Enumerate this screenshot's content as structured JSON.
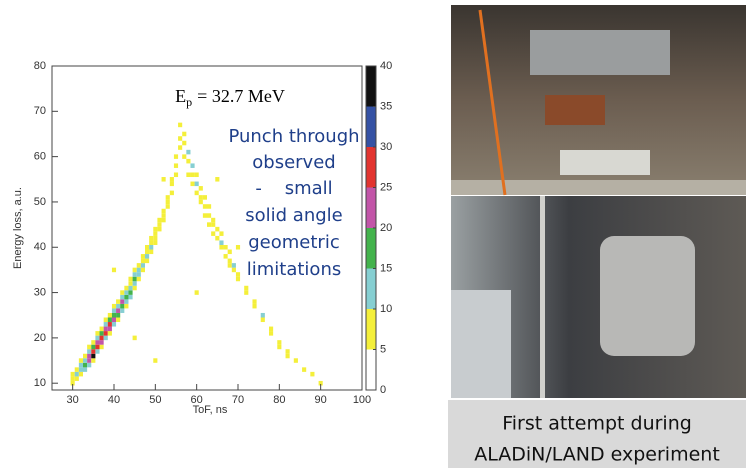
{
  "chart_data": {
    "type": "heatmap",
    "title_parts": {
      "main": "E",
      "sub": "p",
      "rest": "= 32.7 MeV"
    },
    "annotation_lines": [
      "Punch through",
      "observed",
      "-    small",
      "solid angle",
      "geometric",
      "limitations"
    ],
    "annotation_color": "#1f3f8a",
    "xlabel": "ToF, ns",
    "ylabel": "Energy loss, a.u.",
    "xlim": [
      25,
      100
    ],
    "xticks": [
      30,
      40,
      50,
      60,
      70,
      80,
      90,
      100
    ],
    "ylim": [
      8.5,
      80
    ],
    "yticks": [
      10,
      20,
      30,
      40,
      50,
      60,
      70,
      80
    ],
    "colorbar": {
      "lim": [
        0,
        40
      ],
      "ticks": [
        0,
        5,
        10,
        15,
        20,
        25,
        30,
        35,
        40
      ],
      "colors": [
        "#ffffff",
        "#f4ef3a",
        "#86cfd2",
        "#43b34c",
        "#c255a8",
        "#e2342f",
        "#3552a4",
        "#111111"
      ]
    },
    "columns": [
      {
        "x": 30,
        "y": [
          10,
          11,
          12
        ],
        "values": [
          6,
          8,
          5
        ]
      },
      {
        "x": 31,
        "y": [
          11,
          12,
          13
        ],
        "values": [
          9,
          12,
          7
        ]
      },
      {
        "x": 32,
        "y": [
          12,
          13,
          14,
          15
        ],
        "values": [
          8,
          14,
          10,
          6
        ]
      },
      {
        "x": 33,
        "y": [
          13,
          14,
          15,
          16
        ],
        "values": [
          12,
          18,
          14,
          7
        ]
      },
      {
        "x": 34,
        "y": [
          14,
          15,
          16,
          17,
          18
        ],
        "values": [
          10,
          22,
          24,
          12,
          6
        ]
      },
      {
        "x": 35,
        "y": [
          15,
          16,
          17,
          18,
          19
        ],
        "values": [
          8,
          36,
          26,
          16,
          7
        ]
      },
      {
        "x": 36,
        "y": [
          17,
          18,
          19,
          20,
          21
        ],
        "values": [
          14,
          28,
          22,
          12,
          6
        ]
      },
      {
        "x": 37,
        "y": [
          18,
          19,
          20,
          21,
          22
        ],
        "values": [
          9,
          24,
          27,
          18,
          8
        ]
      },
      {
        "x": 38,
        "y": [
          20,
          21,
          22,
          23,
          24
        ],
        "values": [
          12,
          26,
          22,
          14,
          6
        ]
      },
      {
        "x": 39,
        "y": [
          21,
          22,
          23,
          24,
          25
        ],
        "values": [
          8,
          20,
          28,
          17,
          9
        ]
      },
      {
        "x": 40,
        "y": [
          23,
          24,
          25,
          26,
          27,
          35
        ],
        "values": [
          12,
          22,
          18,
          13,
          6,
          6
        ]
      },
      {
        "x": 41,
        "y": [
          24,
          25,
          26,
          27,
          28
        ],
        "values": [
          7,
          16,
          24,
          14,
          8
        ]
      },
      {
        "x": 42,
        "y": [
          26,
          27,
          28,
          29,
          30
        ],
        "values": [
          12,
          18,
          21,
          11,
          6
        ]
      },
      {
        "x": 43,
        "y": [
          27,
          28,
          29,
          30,
          31
        ],
        "values": [
          8,
          14,
          17,
          12,
          7
        ]
      },
      {
        "x": 44,
        "y": [
          29,
          30,
          31,
          32,
          33
        ],
        "values": [
          11,
          16,
          13,
          8,
          6
        ]
      },
      {
        "x": 45,
        "y": [
          20,
          31,
          32,
          33,
          34,
          35
        ],
        "values": [
          6,
          9,
          12,
          17,
          11,
          6
        ]
      },
      {
        "x": 46,
        "y": [
          33,
          34,
          35,
          36
        ],
        "values": [
          8,
          13,
          11,
          7
        ]
      },
      {
        "x": 47,
        "y": [
          35,
          36,
          37,
          38
        ],
        "values": [
          7,
          12,
          9,
          6
        ]
      },
      {
        "x": 48,
        "y": [
          37,
          38,
          39,
          40
        ],
        "values": [
          8,
          11,
          8,
          6
        ]
      },
      {
        "x": 49,
        "y": [
          39,
          40,
          41,
          42
        ],
        "values": [
          7,
          12,
          7,
          6
        ]
      },
      {
        "x": 50,
        "y": [
          15,
          41,
          42,
          43,
          44
        ],
        "values": [
          6,
          6,
          9,
          7,
          6
        ]
      },
      {
        "x": 51,
        "y": [
          44,
          45,
          46
        ],
        "values": [
          6,
          8,
          6
        ]
      },
      {
        "x": 52,
        "y": [
          46,
          47,
          48,
          55
        ],
        "values": [
          7,
          6,
          8,
          6
        ]
      },
      {
        "x": 53,
        "y": [
          49,
          50,
          51
        ],
        "values": [
          6,
          7,
          6
        ]
      },
      {
        "x": 54,
        "y": [
          52,
          54,
          55
        ],
        "values": [
          6,
          7,
          6
        ]
      },
      {
        "x": 55,
        "y": [
          56,
          58,
          60
        ],
        "values": [
          7,
          6,
          6
        ]
      },
      {
        "x": 56,
        "y": [
          62,
          64,
          67
        ],
        "values": [
          7,
          6,
          6
        ]
      },
      {
        "x": 57,
        "y": [
          60,
          63,
          65
        ],
        "values": [
          6,
          8,
          6
        ]
      },
      {
        "x": 58,
        "y": [
          56,
          59,
          61
        ],
        "values": [
          6,
          7,
          12
        ]
      },
      {
        "x": 59,
        "y": [
          54,
          56,
          58
        ],
        "values": [
          6,
          8,
          11
        ]
      },
      {
        "x": 60,
        "y": [
          30,
          52,
          54,
          56
        ],
        "values": [
          6,
          6,
          10,
          7
        ]
      },
      {
        "x": 61,
        "y": [
          50,
          51,
          53
        ],
        "values": [
          6,
          8,
          6
        ]
      },
      {
        "x": 62,
        "y": [
          47,
          49,
          51
        ],
        "values": [
          6,
          9,
          7
        ]
      },
      {
        "x": 63,
        "y": [
          45,
          47,
          49
        ],
        "values": [
          6,
          8,
          6
        ]
      },
      {
        "x": 64,
        "y": [
          43,
          45,
          46
        ],
        "values": [
          6,
          9,
          7
        ]
      },
      {
        "x": 65,
        "y": [
          42,
          44,
          55
        ],
        "values": [
          8,
          6,
          6
        ]
      },
      {
        "x": 66,
        "y": [
          40,
          41,
          43
        ],
        "values": [
          6,
          11,
          7
        ]
      },
      {
        "x": 67,
        "y": [
          38,
          40
        ],
        "values": [
          6,
          8
        ]
      },
      {
        "x": 68,
        "y": [
          36,
          37,
          39
        ],
        "values": [
          7,
          9,
          6
        ]
      },
      {
        "x": 69,
        "y": [
          35,
          36
        ],
        "values": [
          7,
          12
        ]
      },
      {
        "x": 70,
        "y": [
          33,
          34,
          40
        ],
        "values": [
          6,
          8,
          6
        ]
      },
      {
        "x": 72,
        "y": [
          30,
          31
        ],
        "values": [
          6,
          9
        ]
      },
      {
        "x": 74,
        "y": [
          27,
          28
        ],
        "values": [
          6,
          8
        ]
      },
      {
        "x": 76,
        "y": [
          24,
          25
        ],
        "values": [
          6,
          11
        ]
      },
      {
        "x": 78,
        "y": [
          21,
          22
        ],
        "values": [
          6,
          8
        ]
      },
      {
        "x": 80,
        "y": [
          18,
          19
        ],
        "values": [
          7,
          9
        ]
      },
      {
        "x": 82,
        "y": [
          16,
          17
        ],
        "values": [
          6,
          8
        ]
      },
      {
        "x": 84,
        "y": [
          15
        ],
        "values": [
          7
        ]
      },
      {
        "x": 86,
        "y": [
          13
        ],
        "values": [
          9
        ]
      },
      {
        "x": 88,
        "y": [
          12
        ],
        "values": [
          7
        ]
      },
      {
        "x": 90,
        "y": [
          10
        ],
        "values": [
          6
        ]
      }
    ]
  },
  "caption": {
    "lines": [
      "First attempt during",
      "ALADiN/LAND experiment"
    ]
  }
}
